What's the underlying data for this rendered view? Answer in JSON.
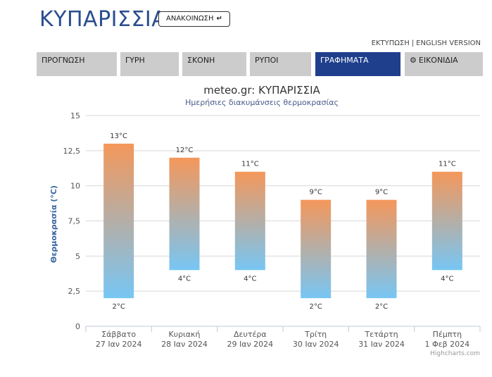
{
  "header": {
    "title": "ΚΥΠΑΡΙΣΣΙΑ",
    "announce_label": "ΑΝΑΚΟΙΝΩΣΗ",
    "announce_icon": "arrow-return-icon",
    "print_link": "ΕΚΤΥΠΩΣΗ",
    "link_separator": "|",
    "english_link": "ENGLISH VERSION"
  },
  "tabs": [
    {
      "label": "ΠΡΟΓΝΩΣΗ",
      "active": false
    },
    {
      "label": "ΓΥΡΗ",
      "active": false
    },
    {
      "label": "ΣΚΟΝΗ",
      "active": false
    },
    {
      "label": "ΡΥΠΟΙ",
      "active": false
    },
    {
      "label": "ΓΡΑΦΗΜΑΤΑ",
      "active": true
    },
    {
      "label": "ΕΙΚΟΝΙΔΙΑ",
      "active": false,
      "icon": "gear-icon"
    }
  ],
  "colors": {
    "brand": "#2a4d8f",
    "active_tab": "#1f3f8c",
    "tab": "#cccccc",
    "bar_top": "#f4975a",
    "bar_bottom": "#77c6f4"
  },
  "chart_data": {
    "type": "bar",
    "subtype": "columnrange",
    "title": "meteo.gr: ΚΥΠΑΡΙΣΣΙΑ",
    "subtitle": "Ημερήσιες διακυμάνσεις θερμοκρασίας",
    "ylabel": "Θερμοκρασία (°C)",
    "xlabel": "",
    "ylim": [
      0,
      15
    ],
    "yticks": [
      "0",
      "2,5",
      "5",
      "7,5",
      "10",
      "12,5",
      "15"
    ],
    "grid": true,
    "categories": [
      {
        "day": "Σάββατο",
        "date": "27 Ιαν 2024"
      },
      {
        "day": "Κυριακή",
        "date": "28 Ιαν 2024"
      },
      {
        "day": "Δευτέρα",
        "date": "29 Ιαν 2024"
      },
      {
        "day": "Τρίτη",
        "date": "30 Ιαν 2024"
      },
      {
        "day": "Τετάρτη",
        "date": "31 Ιαν 2024"
      },
      {
        "day": "Πέμπτη",
        "date": "1 Φεβ 2024"
      }
    ],
    "low": [
      2,
      4,
      4,
      2,
      2,
      4
    ],
    "high": [
      13,
      12,
      11,
      9,
      9,
      11
    ],
    "low_labels": [
      "2°C",
      "4°C",
      "4°C",
      "2°C",
      "2°C",
      "4°C"
    ],
    "high_labels": [
      "13°C",
      "12°C",
      "11°C",
      "9°C",
      "9°C",
      "11°C"
    ],
    "credits": "Highcharts.com"
  }
}
